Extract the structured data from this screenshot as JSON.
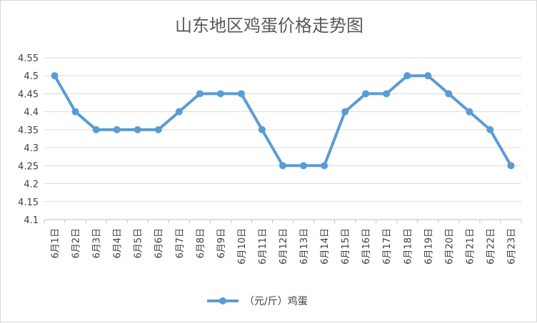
{
  "chart_data": {
    "type": "line",
    "title": "山东地区鸡蛋价格走势图",
    "categories": [
      "6月1日",
      "6月2日",
      "6月3日",
      "6月4日",
      "6月5日",
      "6月6日",
      "6月7日",
      "6月8日",
      "6月9日",
      "6月10日",
      "6月11日",
      "6月12日",
      "6月13日",
      "6月14日",
      "6月15日",
      "6月16日",
      "6月17日",
      "6月18日",
      "6月19日",
      "6月20日",
      "6月21日",
      "6月22日",
      "6月23日"
    ],
    "series": [
      {
        "name": "（元/斤）鸡蛋",
        "values": [
          4.5,
          4.4,
          4.35,
          4.35,
          4.35,
          4.35,
          4.4,
          4.45,
          4.45,
          4.45,
          4.35,
          4.25,
          4.25,
          4.25,
          4.4,
          4.45,
          4.45,
          4.5,
          4.5,
          4.45,
          4.4,
          4.35,
          4.25
        ],
        "color": "#5b9bd5"
      }
    ],
    "ylim": [
      4.1,
      4.55
    ],
    "yticks": [
      "4.55",
      "4.5",
      "4.45",
      "4.4",
      "4.35",
      "4.3",
      "4.25",
      "4.2",
      "4.15",
      "4.1"
    ],
    "grid": true,
    "legend": "bottom",
    "xlabel": "",
    "ylabel": ""
  }
}
